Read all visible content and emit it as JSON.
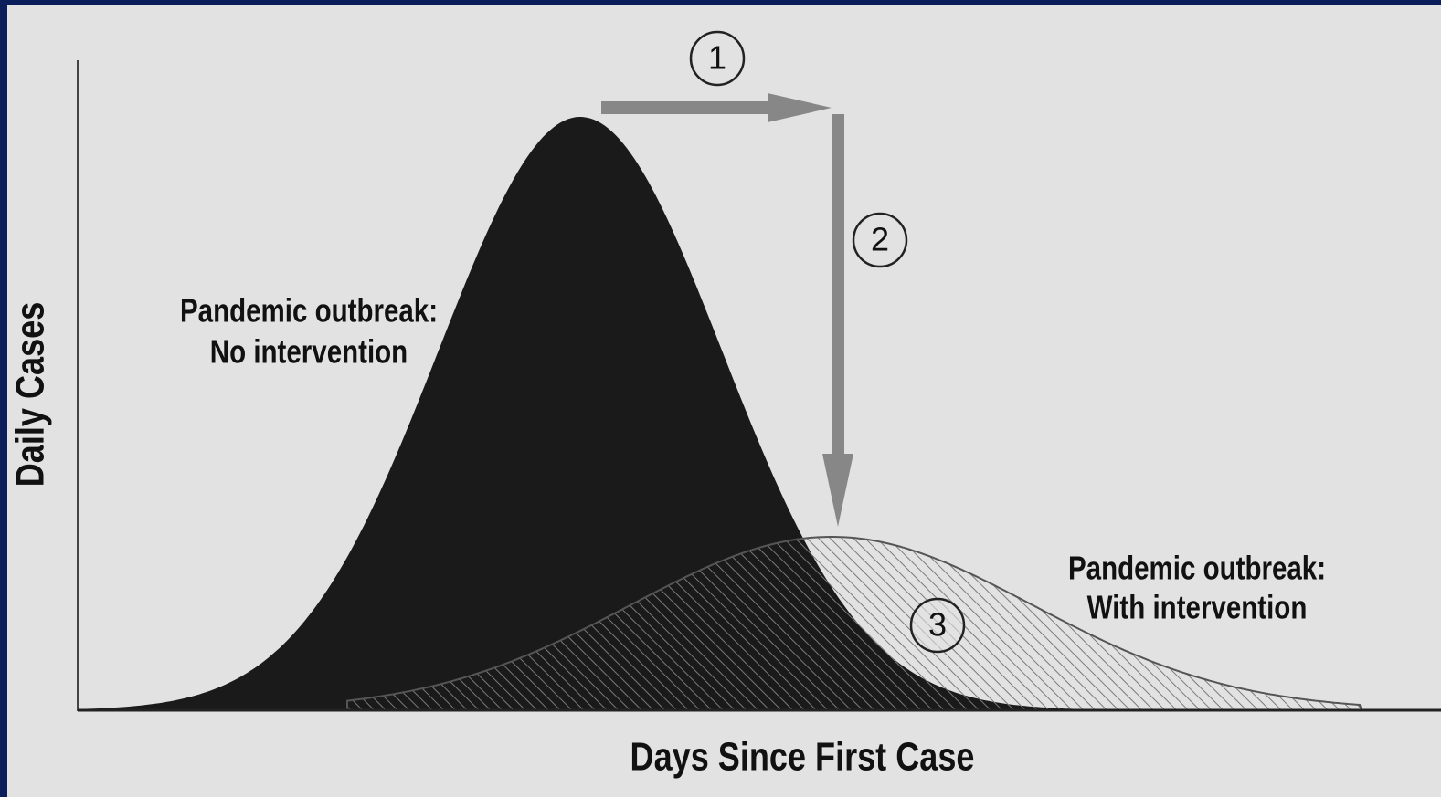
{
  "y_axis_label": "Daily Cases",
  "x_axis_label": "Days Since First Case",
  "curves": [
    {
      "label": [
        "Pandemic outbreak:",
        "No intervention"
      ]
    },
    {
      "label": [
        "Pandemic outbreak:",
        "With intervention"
      ]
    }
  ],
  "markers": [
    "1",
    "2",
    "3"
  ]
}
